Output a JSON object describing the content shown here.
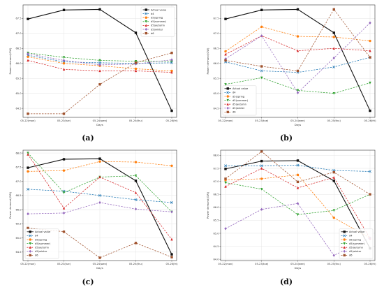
{
  "figure": {
    "background": "#ffffff"
  },
  "chart_data": [
    {
      "caption": "(a)",
      "type": "line",
      "categories": [
        "05-22(mon)",
        "05-23(tue)",
        "05-24(wen)",
        "05-25(thu)",
        "05-26(fri)"
      ],
      "xlabel": "Days",
      "ylabel": "Power demand(GW)",
      "ylim": [
        64.2,
        67.95
      ],
      "yticks": [
        64.5,
        65.0,
        65.5,
        66.0,
        66.5,
        67.0,
        67.5
      ],
      "ytick_labels": [
        "64.5",
        "65.0",
        "65.5",
        "66.0",
        "66.5",
        "67.0",
        "67.5"
      ],
      "grid": true,
      "legend_position": "top-right",
      "series": [
        {
          "name": "Actual value",
          "color": "#111111",
          "marker": "square",
          "dash": "solid",
          "values": [
            67.48,
            67.78,
            67.8,
            67.02,
            64.42
          ]
        },
        {
          "name": "d4",
          "color": "#1f77b4",
          "marker": "x",
          "dash": "dash",
          "values": [
            66.27,
            66.05,
            66.02,
            66.0,
            66.02
          ]
        },
        {
          "name": "d5(spring",
          "color": "#ff7f0e",
          "marker": "circle",
          "dash": "dash",
          "values": [
            66.22,
            66.0,
            65.92,
            65.82,
            65.75
          ]
        },
        {
          "name": "d5(summer)",
          "color": "#2ca02c",
          "marker": "triangle-down",
          "dash": "dash",
          "values": [
            66.35,
            66.2,
            66.1,
            66.07,
            66.07
          ]
        },
        {
          "name": "d5(autumn",
          "color": "#d62728",
          "marker": "triangle-up",
          "dash": "dash",
          "values": [
            66.1,
            65.8,
            65.75,
            65.75,
            65.7
          ]
        },
        {
          "name": "d5(winter",
          "color": "#9467bd",
          "marker": "diamond",
          "dash": "dash",
          "values": [
            66.32,
            66.1,
            65.95,
            65.98,
            66.12
          ]
        },
        {
          "name": "d6",
          "color": "#a0522d",
          "marker": "square",
          "dash": "dash",
          "values": [
            64.32,
            64.32,
            65.3,
            66.02,
            66.35
          ]
        }
      ]
    },
    {
      "caption": "(b)",
      "type": "line",
      "categories": [
        "05-22(mon)",
        "05-23(tue)",
        "05-24(wen)",
        "05-25(thu)",
        "05-26(fri)"
      ],
      "xlabel": "Days",
      "ylabel": "Power demand(GW)",
      "ylim": [
        64.2,
        67.95
      ],
      "yticks": [
        64.5,
        65.0,
        65.5,
        66.0,
        66.5,
        67.0,
        67.5
      ],
      "ytick_labels": [
        "64.5",
        "65.0",
        "65.5",
        "66.0",
        "66.5",
        "67.0",
        "67.5"
      ],
      "grid": true,
      "legend_position": "lower-left",
      "series": [
        {
          "name": "Actual value",
          "color": "#111111",
          "marker": "square",
          "dash": "solid",
          "values": [
            67.48,
            67.78,
            67.8,
            67.02,
            64.42
          ]
        },
        {
          "name": "d4",
          "color": "#1f77b4",
          "marker": "x",
          "dash": "dash",
          "values": [
            66.05,
            65.75,
            65.7,
            65.88,
            66.2
          ]
        },
        {
          "name": "d5(spring",
          "color": "#ff7f0e",
          "marker": "circle",
          "dash": "dash",
          "values": [
            66.4,
            67.22,
            66.9,
            66.88,
            66.75
          ]
        },
        {
          "name": "d5(summer)",
          "color": "#2ca02c",
          "marker": "triangle-down",
          "dash": "dash",
          "values": [
            65.3,
            65.52,
            65.1,
            65.0,
            65.35
          ]
        },
        {
          "name": "d5(autumn",
          "color": "#d62728",
          "marker": "triangle-up",
          "dash": "dash",
          "values": [
            66.3,
            66.92,
            66.42,
            66.5,
            66.42
          ]
        },
        {
          "name": "d5(winter",
          "color": "#9467bd",
          "marker": "diamond",
          "dash": "dash",
          "values": [
            66.15,
            66.92,
            65.02,
            66.18,
            67.35
          ]
        },
        {
          "name": "d6",
          "color": "#a0522d",
          "marker": "square",
          "dash": "dash",
          "values": [
            66.1,
            65.9,
            65.75,
            67.8,
            66.2
          ]
        }
      ]
    },
    {
      "caption": "(c)",
      "type": "line",
      "categories": [
        "05-22(mon)",
        "05-23(tue)",
        "05-24(wen)",
        "05-25(thu)",
        "05-26(fri)"
      ],
      "xlabel": "Days",
      "ylabel": "Power demand(GW)",
      "ylim": [
        64.2,
        68.1
      ],
      "yticks": [
        64.5,
        65.0,
        65.5,
        66.0,
        66.5,
        67.0,
        67.5,
        68.0
      ],
      "ytick_labels": [
        "64.5",
        "65.0",
        "65.5",
        "66.0",
        "66.5",
        "67.0",
        "67.5",
        "68.0"
      ],
      "grid": true,
      "legend_position": "lower-left",
      "series": [
        {
          "name": "Actual value",
          "color": "#111111",
          "marker": "square",
          "dash": "solid",
          "values": [
            67.48,
            67.78,
            67.8,
            67.02,
            64.42
          ]
        },
        {
          "name": "d4",
          "color": "#1f77b4",
          "marker": "x",
          "dash": "dash",
          "values": [
            66.72,
            66.65,
            66.5,
            66.35,
            66.25
          ]
        },
        {
          "name": "d5(spring",
          "color": "#ff7f0e",
          "marker": "circle",
          "dash": "dash",
          "values": [
            67.35,
            67.38,
            67.7,
            67.68,
            67.55
          ]
        },
        {
          "name": "d5(summer)",
          "color": "#2ca02c",
          "marker": "triangle-down",
          "dash": "dash",
          "values": [
            68.0,
            66.6,
            67.15,
            67.2,
            65.92
          ]
        },
        {
          "name": "d5(autumn",
          "color": "#d62728",
          "marker": "triangle-up",
          "dash": "dash",
          "values": [
            67.95,
            66.05,
            67.15,
            66.6,
            64.95
          ]
        },
        {
          "name": "d5(winter",
          "color": "#9467bd",
          "marker": "diamond",
          "dash": "dash",
          "values": [
            65.85,
            65.88,
            66.25,
            66.02,
            65.92
          ]
        },
        {
          "name": "d6",
          "color": "#a0522d",
          "marker": "square",
          "dash": "dash",
          "values": [
            65.35,
            65.22,
            64.3,
            64.82,
            64.32
          ]
        }
      ]
    },
    {
      "caption": "(d)",
      "type": "line",
      "categories": [
        "05-22(mon)",
        "05-23(tue)",
        "05-24(wen)",
        "05-25(thu)",
        "05-26(fri)"
      ],
      "xlabel": "Days",
      "ylabel": "Power demand(GW)",
      "ylim": [
        63.95,
        68.2
      ],
      "yticks": [
        64.0,
        64.5,
        65.0,
        65.5,
        66.0,
        66.5,
        67.0,
        67.5,
        68.0
      ],
      "ytick_labels": [
        "64.0",
        "64.5",
        "65.0",
        "65.5",
        "66.0",
        "66.5",
        "67.0",
        "67.5",
        "68.0"
      ],
      "grid": true,
      "legend_position": "lower-right",
      "series": [
        {
          "name": "Actual value",
          "color": "#111111",
          "marker": "square",
          "dash": "solid",
          "values": [
            67.48,
            67.78,
            67.8,
            67.02,
            64.42
          ]
        },
        {
          "name": "d4",
          "color": "#1f77b4",
          "marker": "x",
          "dash": "dash",
          "values": [
            67.6,
            67.6,
            67.62,
            67.42,
            67.38
          ]
        },
        {
          "name": "d5(spring",
          "color": "#ff7f0e",
          "marker": "circle",
          "dash": "dash",
          "values": [
            67.05,
            67.1,
            67.25,
            65.6,
            64.82
          ]
        },
        {
          "name": "d5(summer)",
          "color": "#2ca02c",
          "marker": "triangle-down",
          "dash": "dash",
          "values": [
            66.95,
            66.7,
            65.72,
            65.88,
            66.5
          ]
        },
        {
          "name": "d5(autumn",
          "color": "#d62728",
          "marker": "triangle-up",
          "dash": "dash",
          "values": [
            66.8,
            67.5,
            66.75,
            67.15,
            64.8
          ]
        },
        {
          "name": "d5(winter",
          "color": "#9467bd",
          "marker": "diamond",
          "dash": "dash",
          "values": [
            65.18,
            65.92,
            66.15,
            64.15,
            64.82
          ]
        },
        {
          "name": "d6",
          "color": "#a0522d",
          "marker": "square",
          "dash": "dash",
          "values": [
            67.1,
            68.15,
            66.98,
            67.35,
            66.5
          ]
        }
      ]
    }
  ]
}
